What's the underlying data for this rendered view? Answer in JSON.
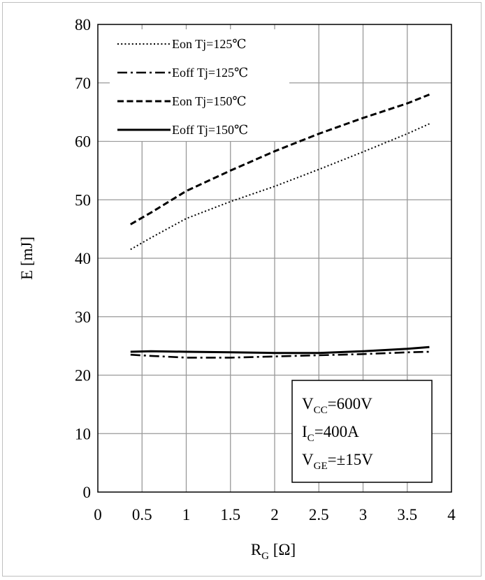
{
  "chart_data": {
    "type": "line",
    "title": "",
    "xlabel": "R",
    "xlabel_sub": "G",
    "xlabel_unit": " [Ω]",
    "ylabel": "E [mJ]",
    "xlim": [
      0,
      4
    ],
    "ylim": [
      0,
      80
    ],
    "xticks": [
      0,
      0.5,
      1,
      1.5,
      2,
      2.5,
      3,
      3.5,
      4
    ],
    "xtick_labels": [
      "0",
      "0.5",
      "1",
      "1.5",
      "2",
      "2.5",
      "3",
      "3.5",
      "4"
    ],
    "yticks": [
      0,
      10,
      20,
      30,
      40,
      50,
      60,
      70,
      80
    ],
    "ytick_labels": [
      "0",
      "10",
      "20",
      "30",
      "40",
      "50",
      "60",
      "70",
      "80"
    ],
    "grid": true,
    "legend_position": "top-left",
    "series": [
      {
        "name": "Eon Tj=125℃",
        "style": "dotted",
        "x": [
          0.37,
          0.6,
          1.0,
          1.5,
          2.0,
          2.5,
          3.0,
          3.5,
          3.75
        ],
        "y": [
          41.5,
          43.5,
          46.8,
          49.7,
          52.3,
          55.2,
          58.2,
          61.3,
          63.0
        ]
      },
      {
        "name": "Eoff Tj=125℃",
        "style": "dashdot",
        "x": [
          0.37,
          0.6,
          1.0,
          1.5,
          2.0,
          2.5,
          3.0,
          3.5,
          3.75
        ],
        "y": [
          23.5,
          23.3,
          23.0,
          23.0,
          23.2,
          23.4,
          23.6,
          23.9,
          24.0
        ]
      },
      {
        "name": "Eon Tj=150℃",
        "style": "dashed",
        "x": [
          0.37,
          0.6,
          1.0,
          1.5,
          2.0,
          2.5,
          3.0,
          3.5,
          3.75
        ],
        "y": [
          45.8,
          47.8,
          51.5,
          55.0,
          58.3,
          61.3,
          64.0,
          66.5,
          68.0
        ]
      },
      {
        "name": "Eoff Tj=150℃",
        "style": "solid",
        "x": [
          0.37,
          0.6,
          1.0,
          1.5,
          2.0,
          2.5,
          3.0,
          3.5,
          3.75
        ],
        "y": [
          24.0,
          24.1,
          24.0,
          23.9,
          23.8,
          23.8,
          24.1,
          24.5,
          24.8
        ]
      }
    ],
    "annotation": {
      "lines": [
        {
          "main": "V",
          "sub": "CC",
          "rest": "=600V"
        },
        {
          "main": "I",
          "sub": "C",
          "rest": "=400A"
        },
        {
          "main": "V",
          "sub": "GE",
          "rest": "=±15V"
        }
      ]
    }
  }
}
